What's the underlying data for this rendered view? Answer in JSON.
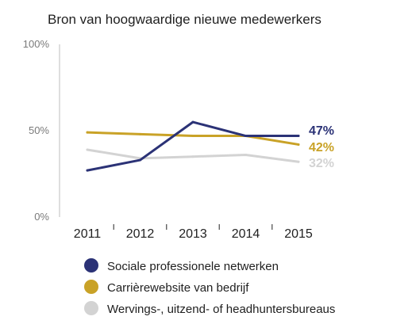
{
  "chart_data": {
    "type": "line",
    "title": "Bron van hoogwaardige nieuwe medewerkers",
    "xlabel": "",
    "ylabel": "",
    "x": [
      "2011",
      "2012",
      "2013",
      "2014",
      "2015"
    ],
    "ylim": [
      0,
      100
    ],
    "yticks": [
      "0%",
      "50%",
      "100%"
    ],
    "grid": false,
    "legend_position": "bottom",
    "series": [
      {
        "name": "Sociale professionele netwerken",
        "color": "#2b3276",
        "values": [
          27,
          33,
          55,
          47,
          47
        ],
        "end_label": "47%"
      },
      {
        "name": "Carrièrewebsite van bedrijf",
        "color": "#c9a227",
        "values": [
          49,
          48,
          47,
          47,
          42
        ],
        "end_label": "42%"
      },
      {
        "name": "Wervings-, uitzend- of headhuntersbureaus",
        "color": "#d3d3d3",
        "values": [
          39,
          34,
          35,
          36,
          32
        ],
        "end_label": "32%"
      }
    ]
  }
}
